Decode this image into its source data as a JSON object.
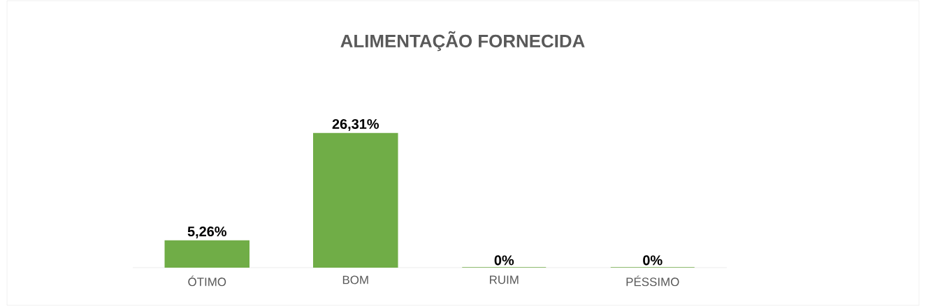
{
  "chart_data": {
    "type": "bar",
    "title": "ALIMENTAÇÃO FORNECIDA",
    "categories": [
      "ÓTIMO",
      "BOM",
      "RUIM",
      "PÉSSIMO"
    ],
    "values": [
      5.26,
      26.31,
      0,
      0
    ],
    "value_labels": [
      "5,26%",
      "26,31%",
      "0%",
      "0%"
    ],
    "color": "#70ad47"
  }
}
